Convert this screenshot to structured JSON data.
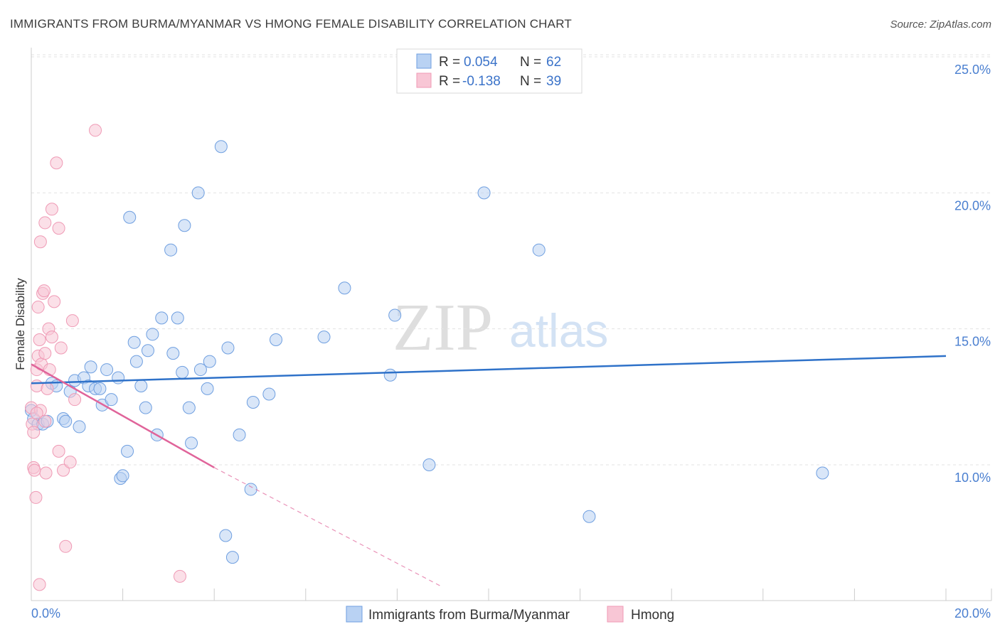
{
  "chart_data": {
    "type": "scatter",
    "title": "IMMIGRANTS FROM BURMA/MYANMAR VS HMONG FEMALE DISABILITY CORRELATION CHART",
    "source": "Source: ZipAtlas.com",
    "ylabel": "Female Disability",
    "xlim": [
      0,
      20
    ],
    "ylim": [
      5.5,
      26
    ],
    "x_tick_labels": [
      "0.0%",
      "20.0%"
    ],
    "y_ticks": [
      10,
      15,
      20,
      25
    ],
    "y_tick_labels": [
      "10.0%",
      "15.0%",
      "20.0%",
      "25.0%"
    ],
    "watermark": {
      "zip": "ZIP",
      "atlas": "atlas"
    },
    "legend": [
      {
        "r_label": "R =",
        "r_value": "0.054",
        "n_label": "N =",
        "n_value": "62"
      },
      {
        "r_label": "R =",
        "r_value": "-0.138",
        "n_label": "N =",
        "n_value": "39"
      }
    ],
    "series": [
      {
        "name": "Immigrants from Burma/Myanmar",
        "color": "#6f9fe0",
        "fill": "#b9d2f3",
        "trend_color": "#2f72c9",
        "trend": {
          "x0": 0,
          "y0": 13.0,
          "x1": 20,
          "y1": 14.0
        },
        "points": [
          [
            0.0,
            12.0
          ],
          [
            0.05,
            11.7
          ],
          [
            0.15,
            11.5
          ],
          [
            0.25,
            11.5
          ],
          [
            0.35,
            11.6
          ],
          [
            0.45,
            13.0
          ],
          [
            0.55,
            12.9
          ],
          [
            0.7,
            11.7
          ],
          [
            0.75,
            11.6
          ],
          [
            0.85,
            12.7
          ],
          [
            0.95,
            13.1
          ],
          [
            1.05,
            11.4
          ],
          [
            1.15,
            13.2
          ],
          [
            1.25,
            12.9
          ],
          [
            1.3,
            13.6
          ],
          [
            1.4,
            12.8
          ],
          [
            1.5,
            12.8
          ],
          [
            1.55,
            12.2
          ],
          [
            1.65,
            13.5
          ],
          [
            1.75,
            12.4
          ],
          [
            1.9,
            13.2
          ],
          [
            1.95,
            9.5
          ],
          [
            2.0,
            9.6
          ],
          [
            2.1,
            10.5
          ],
          [
            2.15,
            19.1
          ],
          [
            2.25,
            14.5
          ],
          [
            2.3,
            13.8
          ],
          [
            2.4,
            12.9
          ],
          [
            2.5,
            12.1
          ],
          [
            2.55,
            14.2
          ],
          [
            2.65,
            14.8
          ],
          [
            2.75,
            11.1
          ],
          [
            2.85,
            15.4
          ],
          [
            3.05,
            17.9
          ],
          [
            3.1,
            14.1
          ],
          [
            3.2,
            15.4
          ],
          [
            3.3,
            13.4
          ],
          [
            3.35,
            18.8
          ],
          [
            3.45,
            12.1
          ],
          [
            3.5,
            10.8
          ],
          [
            3.65,
            20.0
          ],
          [
            3.7,
            13.5
          ],
          [
            3.85,
            12.8
          ],
          [
            3.9,
            13.8
          ],
          [
            4.15,
            21.7
          ],
          [
            4.3,
            14.3
          ],
          [
            4.55,
            11.1
          ],
          [
            4.8,
            9.1
          ],
          [
            4.85,
            12.3
          ],
          [
            5.2,
            12.6
          ],
          [
            5.35,
            14.6
          ],
          [
            6.4,
            14.7
          ],
          [
            6.85,
            16.5
          ],
          [
            7.85,
            13.3
          ],
          [
            7.95,
            15.5
          ],
          [
            8.7,
            10.0
          ],
          [
            4.25,
            7.4
          ],
          [
            4.4,
            6.6
          ],
          [
            9.9,
            20.0
          ],
          [
            11.1,
            17.9
          ],
          [
            12.2,
            8.1
          ],
          [
            17.3,
            9.7
          ]
        ]
      },
      {
        "name": "Hmong",
        "color": "#ef9ab5",
        "fill": "#f8c6d5",
        "trend_color": "#e0649a",
        "trend": {
          "x0": 0,
          "y0": 13.7,
          "x1": 4.0,
          "y1": 9.9
        },
        "trend_dashed": {
          "x0": 4.0,
          "y0": 9.9,
          "x1": 9.0,
          "y1": 5.5
        },
        "points": [
          [
            0.0,
            12.1
          ],
          [
            0.02,
            11.5
          ],
          [
            0.05,
            11.2
          ],
          [
            0.05,
            9.9
          ],
          [
            0.07,
            9.8
          ],
          [
            0.1,
            8.8
          ],
          [
            0.12,
            12.9
          ],
          [
            0.12,
            13.5
          ],
          [
            0.15,
            14.0
          ],
          [
            0.15,
            15.8
          ],
          [
            0.18,
            14.6
          ],
          [
            0.2,
            18.2
          ],
          [
            0.2,
            12.0
          ],
          [
            0.22,
            13.7
          ],
          [
            0.25,
            16.3
          ],
          [
            0.28,
            16.4
          ],
          [
            0.3,
            14.1
          ],
          [
            0.3,
            11.6
          ],
          [
            0.32,
            9.7
          ],
          [
            0.35,
            12.8
          ],
          [
            0.38,
            15.0
          ],
          [
            0.4,
            13.5
          ],
          [
            0.45,
            14.7
          ],
          [
            0.3,
            18.9
          ],
          [
            0.45,
            19.4
          ],
          [
            0.5,
            16.0
          ],
          [
            0.55,
            21.1
          ],
          [
            0.6,
            18.7
          ],
          [
            0.6,
            10.5
          ],
          [
            0.65,
            14.3
          ],
          [
            0.7,
            9.8
          ],
          [
            0.75,
            7.0
          ],
          [
            0.85,
            10.1
          ],
          [
            0.9,
            15.3
          ],
          [
            0.95,
            12.4
          ],
          [
            1.4,
            22.3
          ],
          [
            3.25,
            5.9
          ],
          [
            0.18,
            5.6
          ],
          [
            0.12,
            11.9
          ]
        ]
      }
    ],
    "bottom_legend": [
      "Immigrants from Burma/Myanmar",
      "Hmong"
    ]
  }
}
